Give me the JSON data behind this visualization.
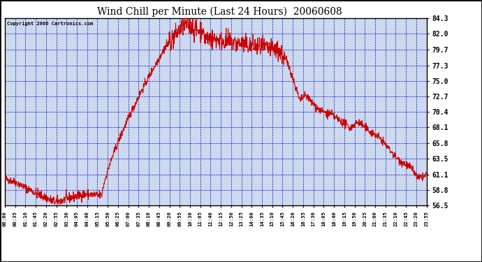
{
  "title": "Wind Chill per Minute (Last 24 Hours)  20060608",
  "copyright": "Copyright 2006 Cartronics.com",
  "line_color": "#cc0000",
  "bg_color": "#ccd9ee",
  "outer_bg_color": "#ffffff",
  "grid_color": "#0000bb",
  "border_color": "#000000",
  "title_color": "#000000",
  "ylim": [
    56.5,
    84.3
  ],
  "yticks": [
    56.5,
    58.8,
    61.1,
    63.5,
    65.8,
    68.1,
    70.4,
    72.7,
    75.0,
    77.3,
    79.7,
    82.0,
    84.3
  ],
  "xtick_labels": [
    "00:00",
    "00:35",
    "01:10",
    "01:45",
    "02:20",
    "02:55",
    "03:30",
    "04:05",
    "04:40",
    "05:15",
    "05:50",
    "06:25",
    "07:00",
    "07:35",
    "08:10",
    "08:45",
    "09:20",
    "09:55",
    "10:30",
    "11:05",
    "11:40",
    "12:15",
    "12:50",
    "13:25",
    "14:00",
    "14:35",
    "15:10",
    "15:45",
    "16:20",
    "16:55",
    "17:30",
    "18:05",
    "18:40",
    "19:15",
    "19:50",
    "20:25",
    "21:00",
    "21:35",
    "22:10",
    "22:45",
    "23:20",
    "23:55"
  ],
  "num_points": 1440
}
